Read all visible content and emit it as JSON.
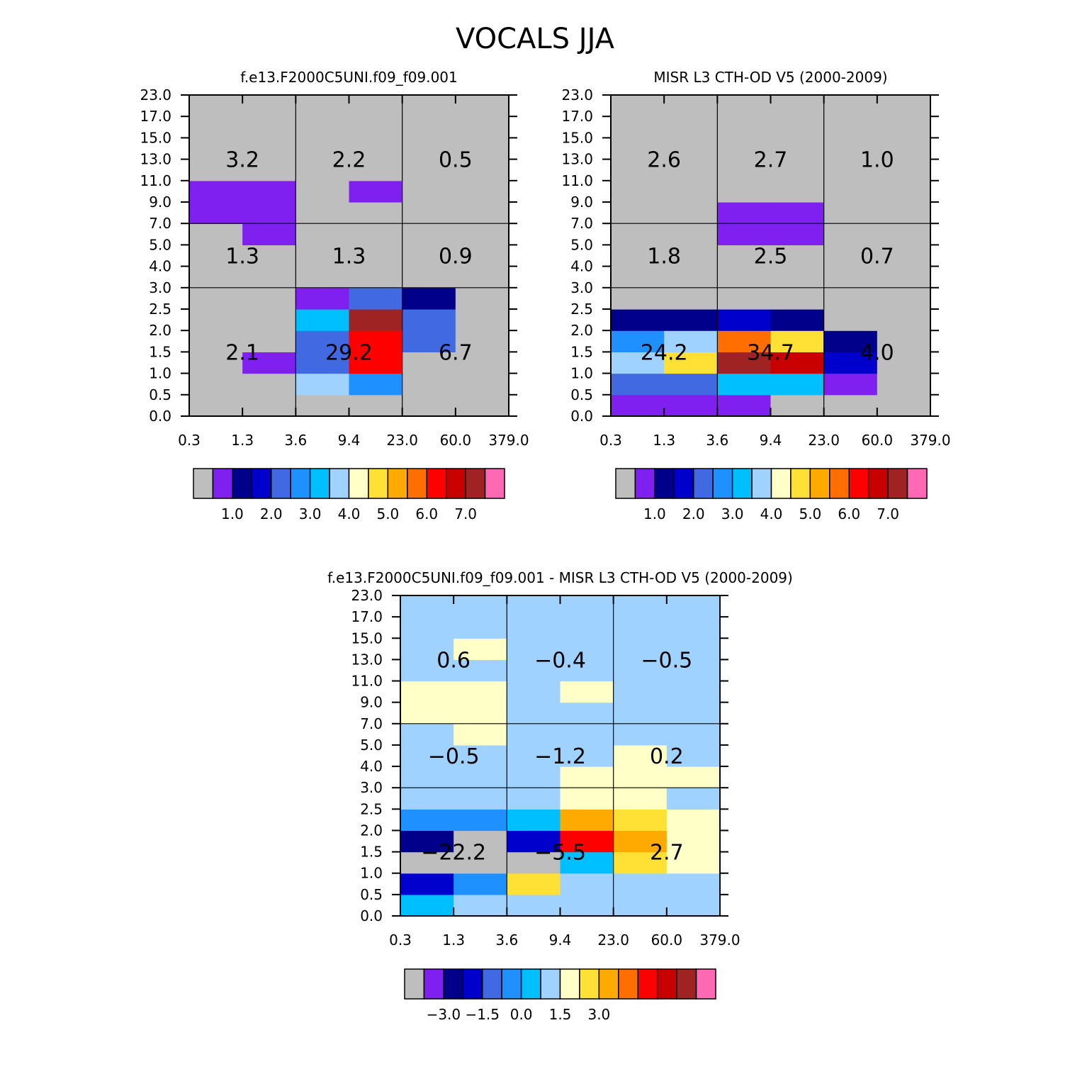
{
  "title": "VOCALS JJA",
  "palette": [
    "#BEBEBE",
    "#8020F0",
    "#00008B",
    "#0000CD",
    "#4169E1",
    "#1E90FF",
    "#00BFFF",
    "#A0D2FF",
    "#FFFFC8",
    "#FFE135",
    "#FFAA00",
    "#FF6E00",
    "#FF0000",
    "#C80000",
    "#A02323",
    "#FF69B4"
  ],
  "x_ticks": [
    "0.3",
    "1.3",
    "3.6",
    "9.4",
    "23.0",
    "60.0",
    "379.0"
  ],
  "y_ticks": [
    "0.0",
    "0.5",
    "1.0",
    "1.5",
    "2.0",
    "2.5",
    "3.0",
    "4.0",
    "5.0",
    "7.0",
    "9.0",
    "11.0",
    "13.0",
    "15.0",
    "17.0",
    "23.0"
  ],
  "chart_data": [
    {
      "type": "heatmap",
      "title": "f.e13.F2000C5UNI.f09_f09.001",
      "xlabel": "",
      "ylabel": "",
      "colorbar_labels": [
        {
          "label": "1.0",
          "boundary": 2
        },
        {
          "label": "2.0",
          "boundary": 4
        },
        {
          "label": "3.0",
          "boundary": 6
        },
        {
          "label": "4.0",
          "boundary": 8
        },
        {
          "label": "5.0",
          "boundary": 10
        },
        {
          "label": "6.0",
          "boundary": 12
        },
        {
          "label": "7.0",
          "boundary": 14
        }
      ],
      "cell_color_index": [
        [
          0,
          0,
          0,
          0,
          0,
          0
        ],
        [
          0,
          0,
          7,
          5,
          0,
          0
        ],
        [
          0,
          1,
          4,
          12,
          0,
          0
        ],
        [
          0,
          0,
          4,
          12,
          4,
          0
        ],
        [
          0,
          0,
          6,
          14,
          4,
          0
        ],
        [
          0,
          0,
          1,
          4,
          2,
          0
        ],
        [
          0,
          0,
          0,
          0,
          0,
          0
        ],
        [
          0,
          0,
          0,
          0,
          0,
          0
        ],
        [
          0,
          1,
          0,
          0,
          0,
          0
        ],
        [
          1,
          1,
          0,
          0,
          0,
          0
        ],
        [
          1,
          1,
          0,
          1,
          0,
          0
        ],
        [
          0,
          0,
          0,
          0,
          0,
          0
        ],
        [
          0,
          0,
          0,
          0,
          0,
          0
        ],
        [
          0,
          0,
          0,
          0,
          0,
          0
        ],
        [
          0,
          0,
          0,
          0,
          0,
          0
        ]
      ],
      "annotations": [
        {
          "text": "2.1",
          "row": "low",
          "col": "thin"
        },
        {
          "text": "29.2",
          "row": "low",
          "col": "medium"
        },
        {
          "text": "6.7",
          "row": "low",
          "col": "thick"
        },
        {
          "text": "1.3",
          "row": "mid",
          "col": "thin"
        },
        {
          "text": "1.3",
          "row": "mid",
          "col": "medium"
        },
        {
          "text": "0.9",
          "row": "mid",
          "col": "thick"
        },
        {
          "text": "3.2",
          "row": "high",
          "col": "thin"
        },
        {
          "text": "2.2",
          "row": "high",
          "col": "medium"
        },
        {
          "text": "0.5",
          "row": "high",
          "col": "thick"
        }
      ]
    },
    {
      "type": "heatmap",
      "title": "MISR L3 CTH-OD V5 (2000-2009)",
      "xlabel": "",
      "ylabel": "",
      "colorbar_labels": [
        {
          "label": "1.0",
          "boundary": 2
        },
        {
          "label": "2.0",
          "boundary": 4
        },
        {
          "label": "3.0",
          "boundary": 6
        },
        {
          "label": "4.0",
          "boundary": 8
        },
        {
          "label": "5.0",
          "boundary": 10
        },
        {
          "label": "6.0",
          "boundary": 12
        },
        {
          "label": "7.0",
          "boundary": 14
        }
      ],
      "cell_color_index": [
        [
          1,
          1,
          1,
          0,
          0,
          0
        ],
        [
          4,
          4,
          6,
          6,
          1,
          0
        ],
        [
          7,
          9,
          14,
          13,
          3,
          0
        ],
        [
          5,
          7,
          11,
          9,
          2,
          0
        ],
        [
          2,
          2,
          3,
          2,
          0,
          0
        ],
        [
          0,
          0,
          0,
          0,
          0,
          0
        ],
        [
          0,
          0,
          0,
          0,
          0,
          0
        ],
        [
          0,
          0,
          0,
          0,
          0,
          0
        ],
        [
          0,
          0,
          1,
          1,
          0,
          0
        ],
        [
          0,
          0,
          1,
          1,
          0,
          0
        ],
        [
          0,
          0,
          0,
          0,
          0,
          0
        ],
        [
          0,
          0,
          0,
          0,
          0,
          0
        ],
        [
          0,
          0,
          0,
          0,
          0,
          0
        ],
        [
          0,
          0,
          0,
          0,
          0,
          0
        ],
        [
          0,
          0,
          0,
          0,
          0,
          0
        ]
      ],
      "annotations": [
        {
          "text": "24.2",
          "row": "low",
          "col": "thin"
        },
        {
          "text": "34.7",
          "row": "low",
          "col": "medium"
        },
        {
          "text": "4.0",
          "row": "low",
          "col": "thick"
        },
        {
          "text": "1.8",
          "row": "mid",
          "col": "thin"
        },
        {
          "text": "2.5",
          "row": "mid",
          "col": "medium"
        },
        {
          "text": "0.7",
          "row": "mid",
          "col": "thick"
        },
        {
          "text": "2.6",
          "row": "high",
          "col": "thin"
        },
        {
          "text": "2.7",
          "row": "high",
          "col": "medium"
        },
        {
          "text": "1.0",
          "row": "high",
          "col": "thick"
        }
      ]
    },
    {
      "type": "heatmap",
      "title": "f.e13.F2000C5UNI.f09_f09.001 - MISR L3 CTH-OD V5 (2000-2009)",
      "xlabel": "",
      "ylabel": "",
      "colorbar_labels": [
        {
          "label": "-3.0",
          "boundary": 2
        },
        {
          "label": "-1.5",
          "boundary": 4
        },
        {
          "label": "0.0",
          "boundary": 6
        },
        {
          "label": "1.5",
          "boundary": 8
        },
        {
          "label": "3.0",
          "boundary": 10
        }
      ],
      "cell_color_index": [
        [
          6,
          7,
          7,
          7,
          7,
          7
        ],
        [
          3,
          5,
          9,
          7,
          7,
          7
        ],
        [
          0,
          0,
          0,
          6,
          9,
          8
        ],
        [
          2,
          0,
          3,
          12,
          10,
          8
        ],
        [
          5,
          5,
          6,
          10,
          9,
          8
        ],
        [
          7,
          7,
          7,
          8,
          8,
          7
        ],
        [
          7,
          7,
          7,
          8,
          8,
          8
        ],
        [
          7,
          7,
          7,
          7,
          8,
          7
        ],
        [
          7,
          8,
          7,
          7,
          7,
          7
        ],
        [
          8,
          8,
          7,
          7,
          7,
          7
        ],
        [
          8,
          8,
          7,
          8,
          7,
          7
        ],
        [
          7,
          7,
          7,
          7,
          7,
          7
        ],
        [
          7,
          8,
          7,
          7,
          7,
          7
        ],
        [
          7,
          7,
          7,
          7,
          7,
          7
        ],
        [
          7,
          7,
          7,
          7,
          7,
          7
        ]
      ],
      "annotations": [
        {
          "text": "-22.2",
          "row": "low",
          "col": "thin"
        },
        {
          "text": "-5.5",
          "row": "low",
          "col": "medium"
        },
        {
          "text": "2.7",
          "row": "low",
          "col": "thick"
        },
        {
          "text": "-0.5",
          "row": "mid",
          "col": "thin"
        },
        {
          "text": "-1.2",
          "row": "mid",
          "col": "medium"
        },
        {
          "text": "0.2",
          "row": "mid",
          "col": "thick"
        },
        {
          "text": "0.6",
          "row": "high",
          "col": "thin"
        },
        {
          "text": "-0.4",
          "row": "high",
          "col": "medium"
        },
        {
          "text": "-0.5",
          "row": "high",
          "col": "thick"
        }
      ]
    }
  ]
}
